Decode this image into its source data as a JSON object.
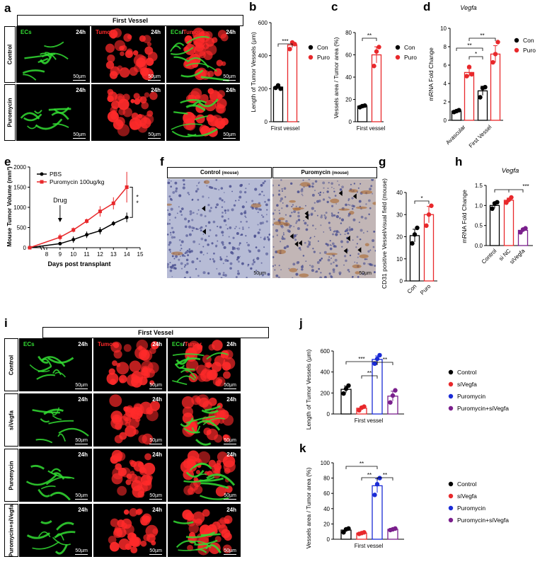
{
  "panel_letters": {
    "a": "a",
    "b": "b",
    "c": "c",
    "d": "d",
    "e": "e",
    "f": "f",
    "g": "g",
    "h": "h",
    "i": "i",
    "j": "j",
    "k": "k"
  },
  "panel_a": {
    "header": "First  Vessel",
    "rows": [
      "Control",
      "Puromycin"
    ],
    "columns": [
      {
        "label": "ECs",
        "color": "#33dd33"
      },
      {
        "label": "Tumor",
        "color": "#ff2a2a"
      },
      {
        "label_a": "ECs",
        "label_sep": "/",
        "label_b": "Tumor"
      }
    ],
    "time": "24h",
    "scale": "50µm"
  },
  "panel_f": {
    "left_header": "Control",
    "right_header": "Puromycin",
    "suffix": "(mouse)",
    "scale": "50µm"
  },
  "panel_i": {
    "header": "First  Vessel",
    "rows": [
      "Control",
      "siVegfa",
      "Puromycin",
      "Puromycin+siVegfa"
    ],
    "columns": [
      {
        "label": "ECs",
        "color": "#33dd33"
      },
      {
        "label": "Tumor",
        "color": "#ff2a2a"
      },
      {
        "label_a": "ECs",
        "label_sep": "/",
        "label_b": "Tumor"
      }
    ],
    "time": "24h",
    "scale": "50µm"
  },
  "colors": {
    "con": "#000000",
    "puro": "#e8282b",
    "blue": "#1a2bd6",
    "purple": "#7a1f8c",
    "green": "#33dd33",
    "red": "#ff2a2a"
  },
  "chart_data": [
    {
      "id": "b",
      "type": "bar",
      "ylabel": "Length of Tumor Vessels (μm)",
      "xlabel": "First vessel",
      "ylim": [
        0,
        600
      ],
      "yticks": [
        0,
        200,
        400,
        600
      ],
      "series": [
        {
          "name": "Con",
          "value": 210,
          "points": [
            205,
            220,
            200
          ]
        },
        {
          "name": "Puro",
          "value": 465,
          "points": [
            440,
            480,
            470
          ]
        }
      ],
      "sig": [
        "***"
      ]
    },
    {
      "id": "c",
      "type": "bar",
      "ylabel": "Vessels area / Tumor area (%)",
      "xlabel": "First vessel",
      "ylim": [
        0,
        80
      ],
      "yticks": [
        0,
        20,
        40,
        60,
        80
      ],
      "series": [
        {
          "name": "Con",
          "value": 14,
          "points": [
            13,
            14,
            14.5
          ]
        },
        {
          "name": "Puro",
          "value": 60,
          "points": [
            50,
            63,
            67
          ]
        }
      ],
      "sig": [
        "**"
      ]
    },
    {
      "id": "d",
      "type": "bar",
      "title": "Vegfa",
      "ylabel": "mRNA Fold Change",
      "categories": [
        "Avascular",
        "First Vessel"
      ],
      "ylim": [
        0,
        10
      ],
      "yticks": [
        0,
        2,
        4,
        6,
        8,
        10
      ],
      "series": [
        {
          "name": "Con",
          "values": [
            1.0,
            3.2
          ],
          "points": [
            [
              0.9,
              1.0,
              1.1
            ],
            [
              2.5,
              3.5,
              3.6
            ]
          ]
        },
        {
          "name": "Puro",
          "values": [
            5.2,
            7.2
          ],
          "points": [
            [
              4.8,
              5.8,
              5.0
            ],
            [
              6.3,
              7.2,
              8.5
            ]
          ]
        }
      ],
      "sig": [
        "**",
        "*",
        "**"
      ]
    },
    {
      "id": "e",
      "type": "line",
      "ylabel": "Mouse Tumor Volume (mm³)",
      "xlabel": "Days post transplant",
      "annotation": "Drug",
      "x": [
        0,
        9,
        10,
        11,
        12,
        13,
        14
      ],
      "xticks": [
        8,
        9,
        10,
        11,
        12,
        13,
        14,
        15
      ],
      "xlim": [
        0,
        15
      ],
      "ylim": [
        0,
        2000
      ],
      "yticks": [
        0,
        500,
        1000,
        1500,
        2000
      ],
      "series": [
        {
          "name": "PBS",
          "values": [
            0,
            100,
            200,
            320,
            420,
            600,
            750
          ],
          "err": [
            0,
            40,
            80,
            80,
            90,
            60,
            120
          ]
        },
        {
          "name": "Puromycin 100ug/kg",
          "values": [
            0,
            260,
            440,
            660,
            900,
            1100,
            1500
          ],
          "err": [
            0,
            80,
            60,
            60,
            130,
            150,
            380
          ]
        }
      ],
      "sig": [
        "*",
        "*"
      ]
    },
    {
      "id": "g",
      "type": "bar",
      "ylabel": "CD31 positive Vessel/visual field (mouse)",
      "categories": [
        "Con",
        "Puro"
      ],
      "ylim": [
        0,
        40
      ],
      "yticks": [
        0,
        10,
        20,
        30,
        40
      ],
      "series": [
        {
          "name": "Con",
          "value": 20.5,
          "points": [
            17,
            21,
            24
          ]
        },
        {
          "name": "Puro",
          "value": 30,
          "points": [
            25,
            30,
            34
          ]
        }
      ],
      "sig": [
        "*"
      ]
    },
    {
      "id": "h",
      "type": "bar",
      "title": "Vegfa",
      "ylabel": "mRNA Fold Change",
      "categories": [
        "Control",
        "si NC",
        "siVegfa"
      ],
      "ylim": [
        0,
        1.5
      ],
      "yticks": [
        "0.0",
        "0.5",
        "1.0",
        "1.5"
      ],
      "series": [
        {
          "name": "Control",
          "value": 1.0,
          "points": [
            0.92,
            1.05,
            1.08
          ]
        },
        {
          "name": "si NC",
          "value": 1.13,
          "points": [
            1.07,
            1.14,
            1.2
          ]
        },
        {
          "name": "siVegfa",
          "value": 0.38,
          "points": [
            0.33,
            0.4,
            0.43
          ]
        }
      ],
      "sig": [
        "***"
      ]
    },
    {
      "id": "j",
      "type": "bar",
      "ylabel": "Length of Tumor Vessels (μm)",
      "xlabel": "First vessel",
      "ylim": [
        0,
        600
      ],
      "yticks": [
        0,
        200,
        400,
        600
      ],
      "series": [
        {
          "name": "Control",
          "value": 235,
          "points": [
            195,
            240,
            270
          ]
        },
        {
          "name": "siVegfa",
          "value": 55,
          "points": [
            35,
            60,
            70
          ]
        },
        {
          "name": "Puromycin",
          "value": 520,
          "points": [
            480,
            525,
            560
          ]
        },
        {
          "name": "Puromycin+siVegfa",
          "value": 170,
          "points": [
            110,
            175,
            225
          ]
        }
      ],
      "sig": [
        "***",
        "**",
        "**"
      ]
    },
    {
      "id": "k",
      "type": "bar",
      "ylabel": "Vessels area / Tumor area (%)",
      "xlabel": "First vessel",
      "ylim": [
        0,
        100
      ],
      "yticks": [
        0,
        20,
        40,
        60,
        80,
        100
      ],
      "series": [
        {
          "name": "Control",
          "value": 12,
          "points": [
            9,
            13,
            14
          ]
        },
        {
          "name": "siVegfa",
          "value": 8,
          "points": [
            7,
            8,
            9
          ]
        },
        {
          "name": "Puromycin",
          "value": 70,
          "points": [
            58,
            72,
            80
          ]
        },
        {
          "name": "Puromycin+siVegfa",
          "value": 13,
          "points": [
            12,
            13,
            14
          ]
        }
      ],
      "sig": [
        "**",
        "**",
        "**"
      ]
    }
  ]
}
